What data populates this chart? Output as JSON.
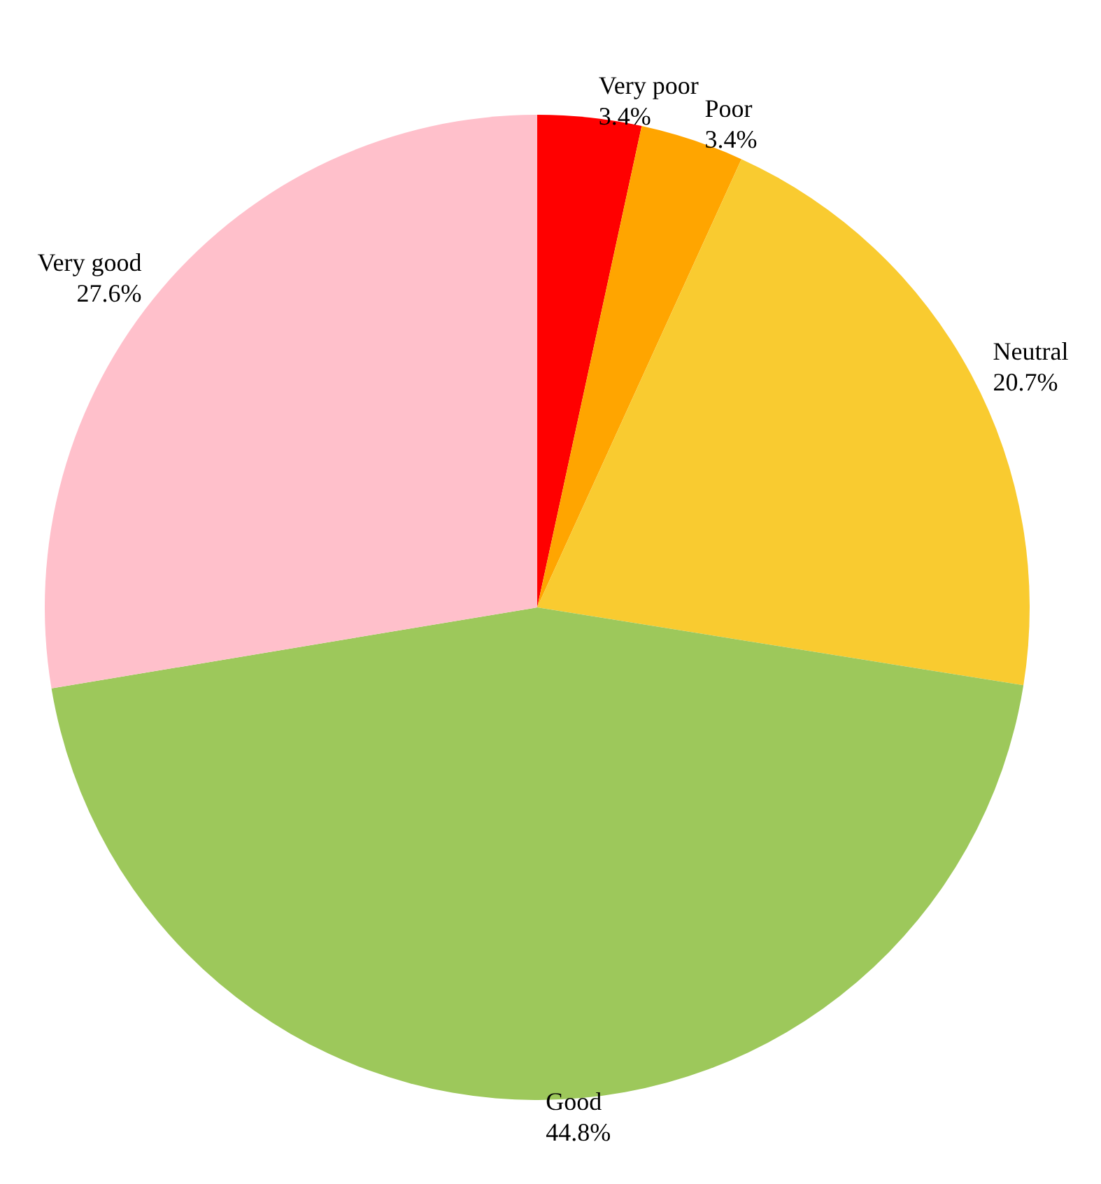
{
  "chart_data": {
    "type": "pie",
    "categories": [
      "Very poor",
      "Poor",
      "Neutral",
      "Good",
      "Very good"
    ],
    "values": [
      3.4,
      3.4,
      20.7,
      44.8,
      27.6
    ],
    "value_labels": [
      "3.4%",
      "3.4%",
      "20.7%",
      "44.8%",
      "27.6%"
    ],
    "colors": [
      "#ff0000",
      "#ffa500",
      "#f9cb30",
      "#9dc85b",
      "#ffc0cb"
    ],
    "legend": false
  }
}
